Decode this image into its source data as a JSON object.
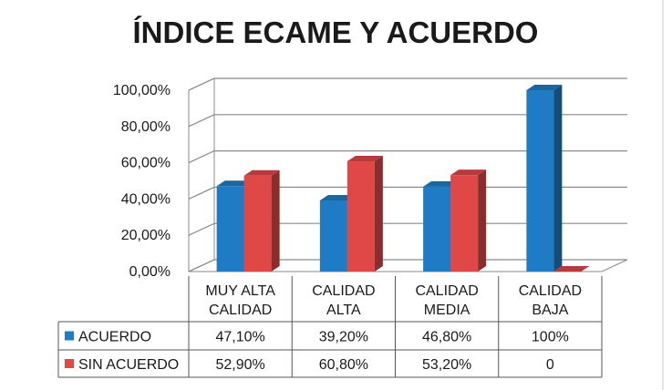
{
  "chart_data": {
    "type": "bar",
    "title": "ÍNDICE ECAME Y ACUERDO",
    "categories": [
      [
        "MUY ALTA",
        "CALIDAD"
      ],
      [
        "CALIDAD",
        "ALTA"
      ],
      [
        "CALIDAD",
        "MEDIA"
      ],
      [
        "CALIDAD",
        "BAJA"
      ]
    ],
    "series": [
      {
        "name": "ACUERDO",
        "color": "#1f7cc4",
        "values": [
          47.1,
          39.2,
          46.8,
          100
        ],
        "labels": [
          "47,10%",
          "39,20%",
          "46,80%",
          "100%"
        ]
      },
      {
        "name": "SIN ACUERDO",
        "color": "#e04848",
        "values": [
          52.9,
          60.8,
          53.2,
          0
        ],
        "labels": [
          "52,90%",
          "60,80%",
          "53,20%",
          "0"
        ]
      }
    ],
    "ylim": [
      0,
      100
    ],
    "yticks": [
      "0,00%",
      "20,00%",
      "40,00%",
      "60,00%",
      "80,00%",
      "100,00%"
    ],
    "grid": true,
    "legend": "data-table",
    "style": "3d"
  }
}
